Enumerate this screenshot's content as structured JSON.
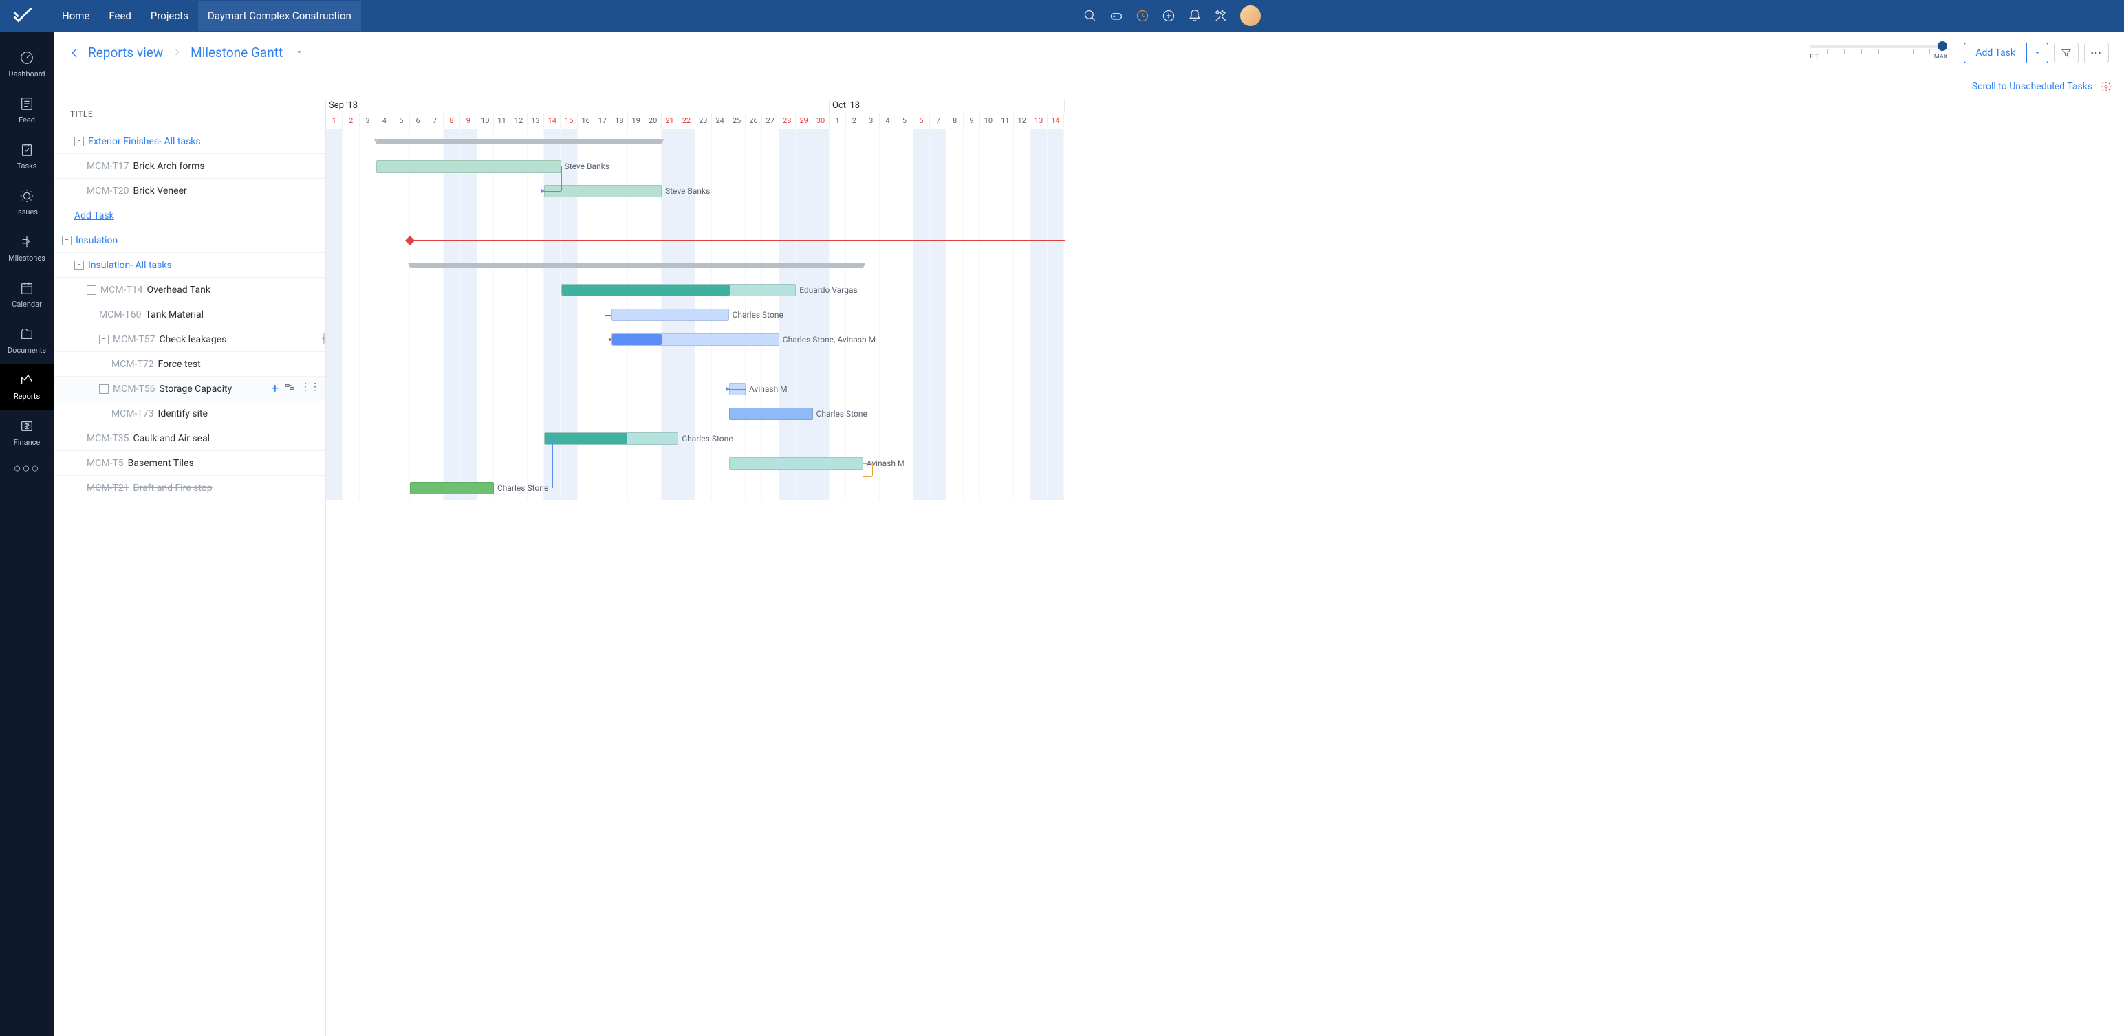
{
  "nav": {
    "home": "Home",
    "feed": "Feed",
    "projects": "Projects",
    "current": "Daymart Complex Construction"
  },
  "sidebar": {
    "items": [
      {
        "label": "Dashboard"
      },
      {
        "label": "Feed"
      },
      {
        "label": "Tasks"
      },
      {
        "label": "Issues"
      },
      {
        "label": "Milestones"
      },
      {
        "label": "Calendar"
      },
      {
        "label": "Documents"
      },
      {
        "label": "Reports"
      },
      {
        "label": "Finance"
      }
    ]
  },
  "toolbar": {
    "crumb": "Reports view",
    "view": "Milestone Gantt",
    "add_task": "Add Task",
    "zoom_fit": "FIT",
    "zoom_max": "MAX"
  },
  "subbar": {
    "scroll_link": "Scroll to Unscheduled Tasks"
  },
  "left": {
    "header": "TITLE",
    "add_task": "Add Task",
    "rows": [
      {
        "kind": "sub",
        "indent": 1,
        "exp": true,
        "title": "Exterior Finishes- All tasks"
      },
      {
        "kind": "task",
        "indent": 2,
        "tid": "MCM-T17",
        "title": "Brick Arch forms"
      },
      {
        "kind": "task",
        "indent": 2,
        "tid": "MCM-T20",
        "title": "Brick Veneer"
      },
      {
        "kind": "add",
        "indent": 1
      },
      {
        "kind": "group",
        "indent": 0,
        "exp": true,
        "title": "Insulation"
      },
      {
        "kind": "sub",
        "indent": 1,
        "exp": true,
        "title": "Insulation- All tasks"
      },
      {
        "kind": "task",
        "indent": 2,
        "exp": true,
        "tid": "MCM-T14",
        "title": "Overhead Tank"
      },
      {
        "kind": "task",
        "indent": 3,
        "tid": "MCM-T60",
        "title": "Tank Material"
      },
      {
        "kind": "task",
        "indent": 3,
        "exp": true,
        "tid": "MCM-T57",
        "title": "Check leakages"
      },
      {
        "kind": "task",
        "indent": 4,
        "tid": "MCM-T72",
        "title": "Force test"
      },
      {
        "kind": "task",
        "indent": 3,
        "exp": true,
        "tid": "MCM-T56",
        "title": "Storage Capacity",
        "hover": true
      },
      {
        "kind": "task",
        "indent": 4,
        "tid": "MCM-T73",
        "title": "Identify site"
      },
      {
        "kind": "task",
        "indent": 2,
        "tid": "MCM-T35",
        "title": "Caulk and Air seal"
      },
      {
        "kind": "task",
        "indent": 2,
        "tid": "MCM-T5",
        "title": "Basement Tiles"
      },
      {
        "kind": "task",
        "indent": 2,
        "tid": "MCM-T21",
        "title": "Draft and Fire stop",
        "strike": true
      }
    ]
  },
  "timeline": {
    "day_width": 24.4,
    "months": [
      {
        "label": "Sep '18",
        "days": 30,
        "start_day": 1
      },
      {
        "label": "Oct '18",
        "days": 14,
        "start_day": 1
      }
    ],
    "weekend_days": [
      0,
      7,
      8,
      13,
      14,
      20,
      21,
      27,
      28,
      29,
      35,
      36,
      42,
      43
    ],
    "red_days": [
      0,
      1,
      7,
      8,
      13,
      14,
      20,
      21,
      27,
      28,
      29,
      35,
      36,
      42,
      43
    ],
    "bars": [
      {
        "row": 0,
        "type": "summary",
        "start": 3,
        "end": 20
      },
      {
        "row": 1,
        "type": "task",
        "start": 3,
        "end": 14,
        "fill_pct": 100,
        "color": "#b8e0d2",
        "fill": "#b8e0d2",
        "label": "Steve Banks"
      },
      {
        "row": 2,
        "type": "task",
        "start": 13,
        "end": 20,
        "fill_pct": 100,
        "color": "#b8e0d2",
        "fill": "#b8e0d2",
        "label": "Steve Banks"
      },
      {
        "row": 4,
        "type": "milestone",
        "start": 5,
        "line_end": 44
      },
      {
        "row": 5,
        "type": "summary",
        "start": 5,
        "end": 32
      },
      {
        "row": 6,
        "type": "task",
        "start": 14,
        "end": 28,
        "fill_pct": 72,
        "color": "#b5e2dd",
        "fill": "#3fb29f",
        "label": "Eduardo Vargas"
      },
      {
        "row": 7,
        "type": "task",
        "start": 17,
        "end": 24,
        "fill_pct": 0,
        "color": "#c7dbff",
        "fill": "#c7dbff",
        "label": "Charles Stone"
      },
      {
        "row": 8,
        "type": "task",
        "start": 17,
        "end": 27,
        "fill_pct": 30,
        "color": "#c7dbff",
        "fill": "#5a8df5",
        "label": "Charles Stone, Avinash M"
      },
      {
        "row": 10,
        "type": "task",
        "start": 24,
        "end": 25,
        "fill_pct": 0,
        "color": "#c7dbff",
        "fill": "#c7dbff",
        "label": "Avinash M"
      },
      {
        "row": 11,
        "type": "task",
        "start": 24,
        "end": 29,
        "fill_pct": 0,
        "color": "#8fbaf8",
        "fill": "#8fbaf8",
        "label": "Charles Stone"
      },
      {
        "row": 12,
        "type": "task",
        "start": 13,
        "end": 21,
        "fill_pct": 62,
        "color": "#b5e2dd",
        "fill": "#3fb29f",
        "label": "Charles Stone"
      },
      {
        "row": 13,
        "type": "task",
        "start": 24,
        "end": 32,
        "fill_pct": 0,
        "color": "#b5e2dd",
        "fill": "#b5e2dd",
        "label": "Avinash M"
      },
      {
        "row": 14,
        "type": "task",
        "start": 5,
        "end": 10,
        "fill_pct": 100,
        "color": "#6ec071",
        "fill": "#6ec071",
        "label": "Charles Stone"
      }
    ],
    "deps": [
      {
        "from_row": 1,
        "from_day": 14,
        "to_row": 2,
        "to_day": 13,
        "color": "#5a8df5"
      },
      {
        "from_row": 7,
        "from_day": 17,
        "to_row": 8,
        "to_day": 17,
        "color": "#e34141",
        "back": true
      },
      {
        "from_row": 8,
        "from_day": 25,
        "to_row": 10,
        "to_day": 24,
        "color": "#5a8df5",
        "down": true
      },
      {
        "from_row": 12,
        "from_day": 13.5,
        "to_row": 14,
        "to_day": 13.5,
        "color": "#5a8df5",
        "vertical": true
      },
      {
        "from_row": 13,
        "from_day": 32,
        "to_row": 13,
        "to_day": 32,
        "color": "#f0a030",
        "loop": true
      }
    ]
  },
  "colors": {
    "topbar": "#1e4f8f",
    "sidebar": "#0e1a2b",
    "link": "#2f7ff0",
    "red": "#e34141",
    "grid": "#e5e8eb"
  }
}
